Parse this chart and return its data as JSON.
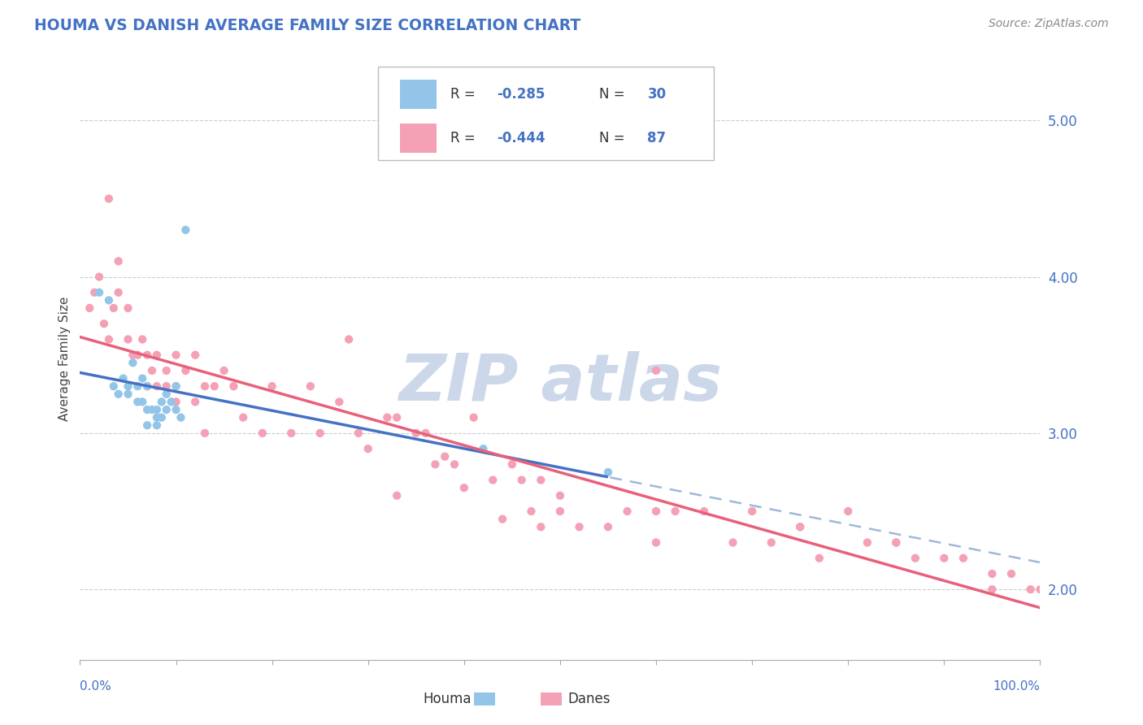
{
  "title": "HOUMA VS DANISH AVERAGE FAMILY SIZE CORRELATION CHART",
  "source_text": "Source: ZipAtlas.com",
  "ylabel": "Average Family Size",
  "yticks": [
    2.0,
    3.0,
    4.0,
    5.0
  ],
  "xlim": [
    0.0,
    1.0
  ],
  "ylim": [
    1.55,
    5.4
  ],
  "houma_color": "#92c5e8",
  "danes_color": "#f4a0b5",
  "houma_line_color": "#4472c4",
  "danes_line_color": "#e8607a",
  "dashed_line_color": "#a0b8d8",
  "watermark_color": "#ccd8ea",
  "title_color": "#4472c4",
  "source_color": "#888888",
  "ylabel_color": "#444444",
  "yticklabel_color": "#4472c4",
  "xlabel_color": "#4472c4",
  "grid_color": "#cccccc",
  "houma_x": [
    0.02,
    0.03,
    0.035,
    0.04,
    0.045,
    0.05,
    0.05,
    0.055,
    0.06,
    0.06,
    0.065,
    0.065,
    0.07,
    0.07,
    0.07,
    0.075,
    0.08,
    0.08,
    0.08,
    0.085,
    0.085,
    0.09,
    0.09,
    0.095,
    0.1,
    0.1,
    0.105,
    0.11,
    0.42,
    0.55
  ],
  "houma_y": [
    3.9,
    3.85,
    3.3,
    3.25,
    3.35,
    3.25,
    3.3,
    3.45,
    3.3,
    3.2,
    3.35,
    3.2,
    3.3,
    3.15,
    3.05,
    3.15,
    3.15,
    3.05,
    3.1,
    3.2,
    3.1,
    3.25,
    3.15,
    3.2,
    3.15,
    3.3,
    3.1,
    4.3,
    2.9,
    2.75
  ],
  "danes_x": [
    0.01,
    0.015,
    0.02,
    0.025,
    0.03,
    0.03,
    0.035,
    0.04,
    0.04,
    0.05,
    0.05,
    0.055,
    0.06,
    0.065,
    0.07,
    0.07,
    0.075,
    0.08,
    0.08,
    0.09,
    0.09,
    0.1,
    0.1,
    0.1,
    0.11,
    0.12,
    0.12,
    0.13,
    0.13,
    0.14,
    0.15,
    0.16,
    0.17,
    0.19,
    0.2,
    0.22,
    0.24,
    0.25,
    0.27,
    0.29,
    0.3,
    0.32,
    0.33,
    0.35,
    0.36,
    0.37,
    0.39,
    0.41,
    0.43,
    0.45,
    0.46,
    0.47,
    0.48,
    0.5,
    0.52,
    0.55,
    0.57,
    0.6,
    0.6,
    0.62,
    0.65,
    0.68,
    0.7,
    0.72,
    0.75,
    0.77,
    0.8,
    0.82,
    0.85,
    0.87,
    0.9,
    0.92,
    0.95,
    0.97,
    0.99,
    1.0,
    0.28,
    0.38,
    0.48,
    0.6,
    0.75,
    0.85,
    0.95,
    0.4,
    0.5,
    0.33,
    0.44
  ],
  "danes_y": [
    3.8,
    3.9,
    4.0,
    3.7,
    4.5,
    3.6,
    3.8,
    4.1,
    3.9,
    3.6,
    3.8,
    3.5,
    3.5,
    3.6,
    3.3,
    3.5,
    3.4,
    3.5,
    3.3,
    3.4,
    3.3,
    3.5,
    3.3,
    3.2,
    3.4,
    3.5,
    3.2,
    3.0,
    3.3,
    3.3,
    3.4,
    3.3,
    3.1,
    3.0,
    3.3,
    3.0,
    3.3,
    3.0,
    3.2,
    3.0,
    2.9,
    3.1,
    3.1,
    3.0,
    3.0,
    2.8,
    2.8,
    3.1,
    2.7,
    2.8,
    2.7,
    2.5,
    2.4,
    2.6,
    2.4,
    2.4,
    2.5,
    2.3,
    3.4,
    2.5,
    2.5,
    2.3,
    2.5,
    2.3,
    2.4,
    2.2,
    2.5,
    2.3,
    2.3,
    2.2,
    2.2,
    2.2,
    2.1,
    2.1,
    2.0,
    2.0,
    3.6,
    2.85,
    2.7,
    2.5,
    2.4,
    2.3,
    2.0,
    2.65,
    2.5,
    2.6,
    2.45
  ],
  "houma_line_x_solid_end": 0.55,
  "houma_r": -0.285,
  "houma_n": 30,
  "danes_r": -0.444,
  "danes_n": 87
}
